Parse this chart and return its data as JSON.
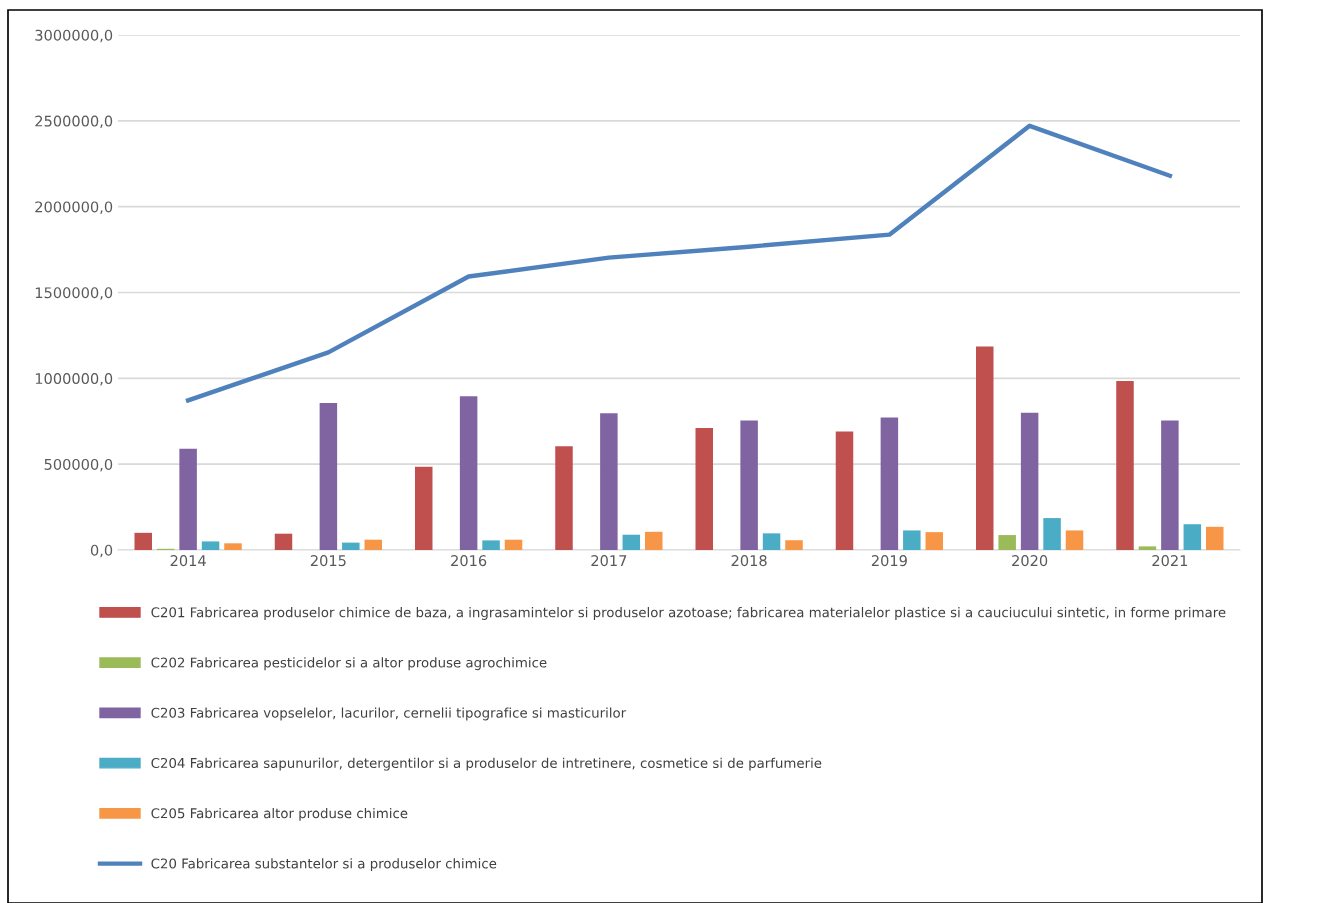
{
  "chart_data": {
    "type": "bar",
    "categories": [
      "2014",
      "2015",
      "2016",
      "2017",
      "2018",
      "2019",
      "2020",
      "2021"
    ],
    "series": [
      {
        "name": "C201 Fabricarea produselor chimice de baza, a ingrasamintelor si produselor azotoase; fabricarea materialelor plastice si a cauciucului sintetic, in forme primare",
        "color": "#c0504d",
        "values": [
          100000,
          95000,
          485000,
          605000,
          710000,
          690000,
          1185000,
          985000
        ]
      },
      {
        "name": "C202 Fabricarea pesticidelor si a altor produse agrochimice",
        "color": "#9bbb59",
        "values": [
          7000,
          0,
          0,
          0,
          0,
          0,
          87000,
          21000
        ]
      },
      {
        "name": "C203 Fabricarea vopselelor, lacurilor, cernelii tipografice si masticurilor",
        "color": "#8064a2",
        "values": [
          590000,
          857000,
          896000,
          797000,
          755000,
          772000,
          799000,
          755000
        ]
      },
      {
        "name": "C204 Fabricarea sapunurilor, detergentilor si a produselor de intretinere, cosmetice si de parfumerie",
        "color": "#4bacc6",
        "values": [
          50000,
          43000,
          56000,
          89000,
          97000,
          114000,
          186000,
          150000
        ]
      },
      {
        "name": "C205 Fabricarea altor produse chimice",
        "color": "#f79646",
        "values": [
          39000,
          60000,
          60000,
          106000,
          57000,
          104000,
          114000,
          135000
        ]
      },
      {
        "name": "C20 Fabricarea substantelor si a produselor chimice",
        "color": "#4f81bd",
        "type": "line",
        "values": [
          872000,
          1151000,
          1593000,
          1703000,
          1767000,
          1837000,
          2471000,
          2180000
        ]
      }
    ],
    "ylim": [
      0,
      3000000
    ],
    "yticks": [
      {
        "value": 0,
        "label": "0,0"
      },
      {
        "value": 500000,
        "label": "500000,0"
      },
      {
        "value": 1000000,
        "label": "1000000,0"
      },
      {
        "value": 1500000,
        "label": "1500000,0"
      },
      {
        "value": 2000000,
        "label": "2000000,0"
      },
      {
        "value": 2500000,
        "label": "2500000,0"
      },
      {
        "value": 3000000,
        "label": "3000000,0"
      }
    ],
    "grid": "y",
    "legend": "bottom",
    "marker": "none",
    "line_style": "solid"
  }
}
